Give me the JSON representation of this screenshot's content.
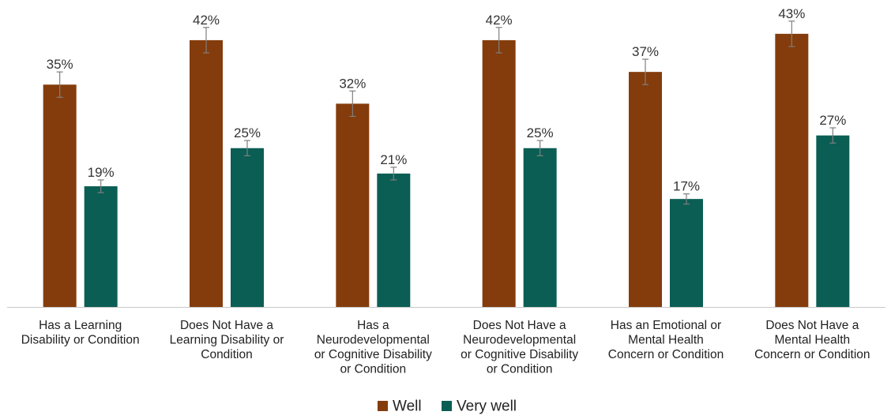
{
  "chart_data": {
    "type": "bar",
    "categories": [
      [
        "Has a Learning",
        "Disability or Condition"
      ],
      [
        "Does Not Have a",
        "Learning Disability or",
        "Condition"
      ],
      [
        "Has a",
        "Neurodevelopmental",
        "or Cognitive Disability",
        "or Condition"
      ],
      [
        "Does Not Have a",
        "Neurodevelopmental",
        "or Cognitive Disability",
        "or Condition"
      ],
      [
        "Has an Emotional or",
        "Mental Health",
        "Concern or Condition"
      ],
      [
        "Does Not Have a",
        "Mental Health",
        "Concern or Condition"
      ]
    ],
    "series": [
      {
        "name": "Well",
        "color": "#843C0C",
        "values": [
          35,
          42,
          32,
          42,
          37,
          43
        ],
        "labels": [
          "35%",
          "42%",
          "32%",
          "42%",
          "37%",
          "43%"
        ],
        "error": [
          2,
          2,
          2,
          2,
          2,
          2
        ]
      },
      {
        "name": "Very well",
        "color": "#0B5E54",
        "values": [
          19,
          25,
          21,
          25,
          17,
          27
        ],
        "labels": [
          "19%",
          "25%",
          "21%",
          "25%",
          "17%",
          "27%"
        ],
        "error": [
          1,
          1.2,
          1,
          1.2,
          0.8,
          1.2
        ]
      }
    ],
    "ylim": [
      0,
      48
    ],
    "grid": false,
    "legend": "bottom"
  }
}
